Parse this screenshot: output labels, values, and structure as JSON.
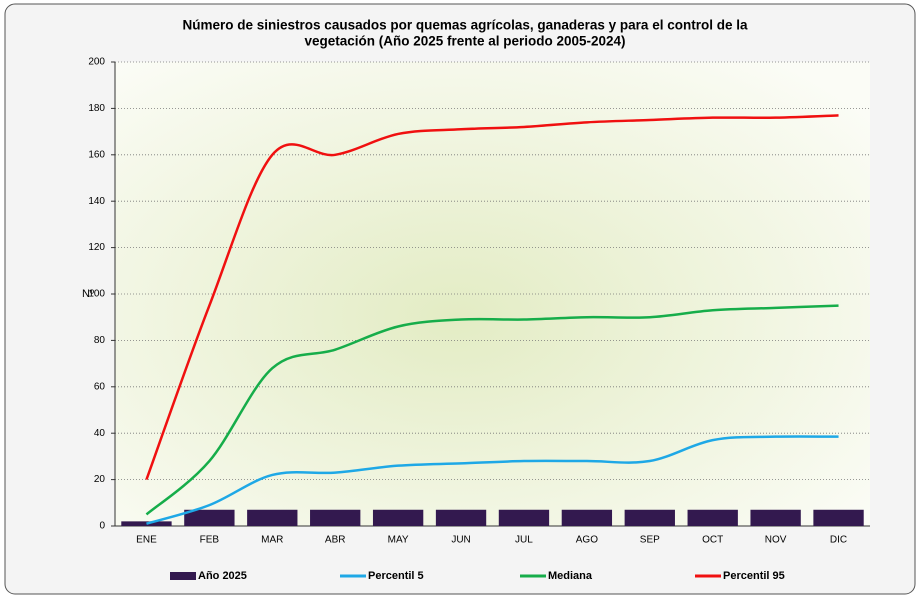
{
  "chart_data": {
    "type": "bar-line",
    "title": [
      "Número de siniestros causados por quemas agrícolas, ganaderas  y  para  el control de la",
      "vegetación  (Año 2025 frente al periodo 2005-2024)"
    ],
    "y_label": "Nº",
    "categories": [
      "ENE",
      "FEB",
      "MAR",
      "ABR",
      "MAY",
      "JUN",
      "JUL",
      "AGO",
      "SEP",
      "OCT",
      "NOV",
      "DIC"
    ],
    "series": [
      {
        "name": "Año 2025",
        "type": "bar",
        "color": "#33194f",
        "values": [
          2,
          7,
          7,
          7,
          7,
          7,
          7,
          7,
          7,
          7,
          7,
          7
        ]
      },
      {
        "name": "Percentil 5",
        "type": "line",
        "color": "#1ea8e6",
        "values": [
          1,
          9,
          22,
          23,
          26,
          27,
          28,
          28,
          28,
          37,
          38.5,
          38.5
        ]
      },
      {
        "name": "Mediana",
        "type": "line",
        "color": "#16ad4a",
        "values": [
          5,
          28,
          68,
          76,
          86,
          89,
          89,
          90,
          90,
          93,
          94,
          95
        ]
      },
      {
        "name": "Percentil 95",
        "type": "line",
        "color": "#f01010",
        "values": [
          20,
          95,
          160,
          160,
          169,
          171,
          172,
          174,
          175,
          176,
          176,
          177
        ]
      }
    ],
    "ylim": [
      0,
      200
    ],
    "yticks": [
      0,
      20,
      40,
      60,
      80,
      100,
      120,
      140,
      160,
      180,
      200
    ],
    "grid": true,
    "legend": "bottom"
  }
}
